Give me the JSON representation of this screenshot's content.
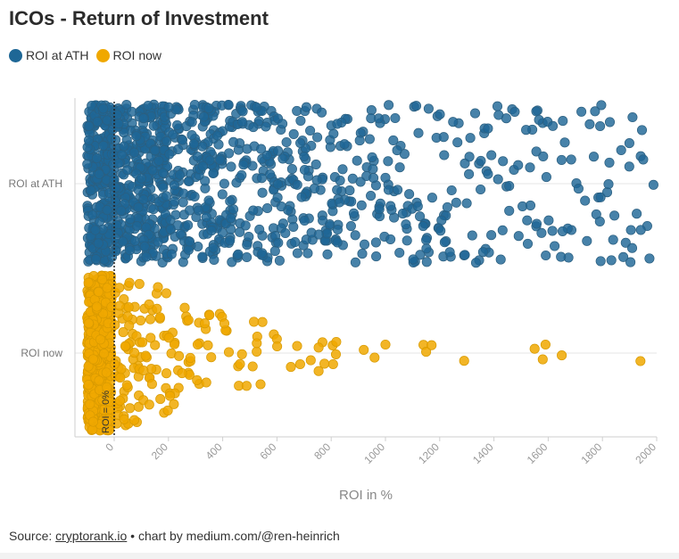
{
  "chart_data": {
    "type": "scatter",
    "subtype": "beeswarm",
    "title": "ICOs - Return of Investment",
    "xlabel": "ROI in %",
    "ylabel": "",
    "xlim": [
      -120,
      2000
    ],
    "x_ticks": [
      0,
      200,
      400,
      600,
      800,
      1000,
      1200,
      1400,
      1600,
      1800,
      2000
    ],
    "categories": [
      "ROI at ATH",
      "ROI now"
    ],
    "series": [
      {
        "name": "ROI at ATH",
        "color": "#1e6796",
        "clusters": [
          {
            "x_min": -100,
            "x_max": 0,
            "count": 260
          },
          {
            "x_min": 0,
            "x_max": 200,
            "count": 330
          },
          {
            "x_min": 200,
            "x_max": 400,
            "count": 170
          },
          {
            "x_min": 400,
            "x_max": 600,
            "count": 110
          },
          {
            "x_min": 600,
            "x_max": 800,
            "count": 85
          },
          {
            "x_min": 800,
            "x_max": 1000,
            "count": 65
          },
          {
            "x_min": 1000,
            "x_max": 1200,
            "count": 50
          },
          {
            "x_min": 1200,
            "x_max": 1400,
            "count": 42
          },
          {
            "x_min": 1400,
            "x_max": 1600,
            "count": 34
          },
          {
            "x_min": 1600,
            "x_max": 1800,
            "count": 28
          },
          {
            "x_min": 1800,
            "x_max": 2000,
            "count": 24
          }
        ]
      },
      {
        "name": "ROI now",
        "color": "#f0a800",
        "clusters": [
          {
            "x_min": -100,
            "x_max": -10,
            "count": 600
          },
          {
            "x_min": 0,
            "x_max": 100,
            "count": 60
          },
          {
            "x_min": 100,
            "x_max": 200,
            "count": 30
          },
          {
            "x_min": 200,
            "x_max": 300,
            "count": 22
          },
          {
            "x_min": 300,
            "x_max": 400,
            "count": 14
          },
          {
            "x_min": 400,
            "x_max": 500,
            "count": 9
          },
          {
            "x_min": 500,
            "x_max": 650,
            "count": 10
          },
          {
            "x_min": 650,
            "x_max": 820,
            "count": 12
          }
        ],
        "outliers": [
          920,
          960,
          1000,
          1140,
          1150,
          1170,
          1290,
          1550,
          1580,
          1590,
          1650,
          1940
        ]
      }
    ],
    "reference_line": {
      "x": 0,
      "label": "ROI = 0%"
    },
    "legend": {
      "position": "top-left",
      "entries": [
        "ROI at ATH",
        "ROI now"
      ]
    }
  },
  "source": {
    "prefix": "Source: ",
    "link_text": "cryptorank.io",
    "suffix": " • chart by medium.com/@ren-heinrich"
  }
}
